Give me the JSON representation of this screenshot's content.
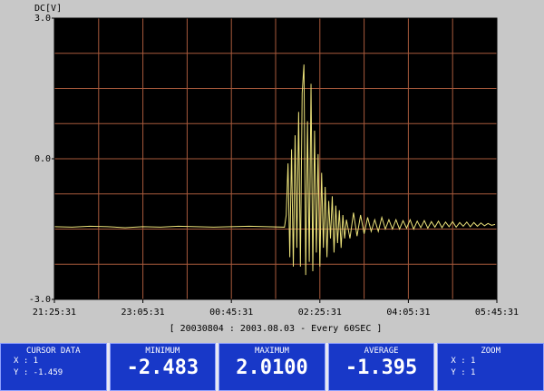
{
  "chart_data": {
    "type": "line",
    "y_label": "DC[V]",
    "subtitle": "[ 20030804 : 2003.08.03 - Every 60SEC ]",
    "xlim": [
      0,
      500
    ],
    "xticks": [
      {
        "value": 0,
        "label": "21:25:31"
      },
      {
        "value": 100,
        "label": "23:05:31"
      },
      {
        "value": 200,
        "label": "00:45:31"
      },
      {
        "value": 300,
        "label": "02:25:31"
      },
      {
        "value": 400,
        "label": "04:05:31"
      },
      {
        "value": 500,
        "label": "05:45:31"
      }
    ],
    "ylim": [
      -3,
      3
    ],
    "yticks": [
      {
        "value": 3,
        "label": "3.0"
      },
      {
        "value": 0,
        "label": "0.0"
      },
      {
        "value": -3,
        "label": "-3.0"
      }
    ],
    "grid": true,
    "grid_divisions": {
      "x": 10,
      "y": 8
    },
    "grid_color": "#a85a3c",
    "background": "#000000",
    "series": [
      {
        "color": "#ece27a",
        "x": [
          0,
          20,
          40,
          60,
          80,
          100,
          120,
          140,
          160,
          180,
          200,
          220,
          240,
          260,
          262,
          264,
          266,
          268,
          270,
          272,
          274,
          276,
          278,
          280,
          282,
          284,
          286,
          288,
          290,
          292,
          294,
          296,
          298,
          300,
          302,
          304,
          306,
          308,
          310,
          312,
          314,
          316,
          318,
          320,
          322,
          324,
          326,
          328,
          330,
          334,
          338,
          342,
          346,
          350,
          354,
          358,
          362,
          366,
          370,
          374,
          378,
          382,
          386,
          390,
          394,
          398,
          402,
          406,
          410,
          414,
          418,
          422,
          426,
          430,
          434,
          438,
          442,
          446,
          450,
          454,
          458,
          462,
          466,
          470,
          474,
          478,
          482,
          486,
          490,
          494,
          498
        ],
        "values": [
          -1.45,
          -1.46,
          -1.44,
          -1.45,
          -1.47,
          -1.45,
          -1.46,
          -1.44,
          -1.45,
          -1.46,
          -1.45,
          -1.44,
          -1.45,
          -1.46,
          -1.2,
          -0.1,
          -2.1,
          0.2,
          -2.3,
          0.5,
          -1.9,
          1.0,
          -2.3,
          1.4,
          2.01,
          -2.48,
          0.8,
          -2.2,
          1.6,
          -2.4,
          0.6,
          -2.0,
          0.1,
          -2.3,
          -0.3,
          -1.9,
          -0.6,
          -2.1,
          -0.9,
          -1.7,
          -0.8,
          -2.0,
          -1.0,
          -1.8,
          -1.1,
          -1.9,
          -1.2,
          -1.7,
          -1.3,
          -1.7,
          -1.15,
          -1.65,
          -1.2,
          -1.6,
          -1.25,
          -1.55,
          -1.3,
          -1.55,
          -1.25,
          -1.5,
          -1.3,
          -1.5,
          -1.3,
          -1.5,
          -1.32,
          -1.48,
          -1.3,
          -1.5,
          -1.33,
          -1.47,
          -1.32,
          -1.48,
          -1.34,
          -1.46,
          -1.33,
          -1.47,
          -1.35,
          -1.45,
          -1.34,
          -1.46,
          -1.36,
          -1.44,
          -1.35,
          -1.45,
          -1.36,
          -1.44,
          -1.37,
          -1.43,
          -1.38,
          -1.42,
          -1.4
        ]
      }
    ]
  },
  "panels": [
    {
      "title": "CURSOR DATA",
      "lines": [
        "X : 1",
        "Y : -1.459"
      ]
    },
    {
      "title": "MINIMUM",
      "value": "-2.483"
    },
    {
      "title": "MAXIMUM",
      "value": "2.0100"
    },
    {
      "title": "AVERAGE",
      "value": "-1.395"
    },
    {
      "title": "ZOOM",
      "lines": [
        "X : 1",
        "Y : 1"
      ]
    }
  ]
}
